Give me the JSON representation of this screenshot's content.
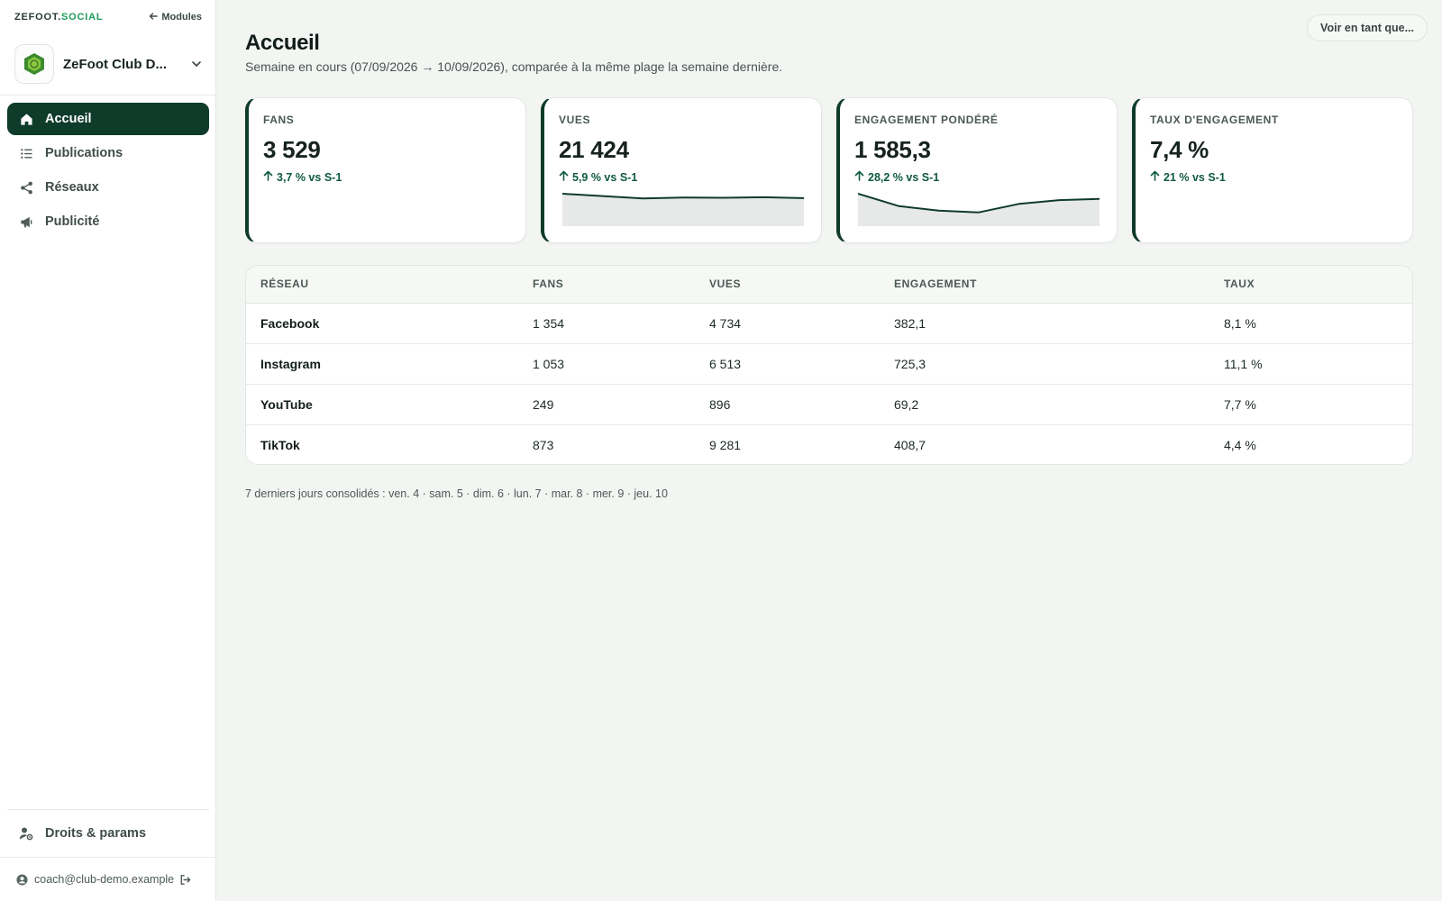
{
  "app": {
    "brand_prefix": "ZEFOOT.",
    "brand_suffix": "SOCIAL",
    "modules_link": "Modules",
    "club_name": "ZeFoot Club D..."
  },
  "sidebar": {
    "items": [
      {
        "label": "Accueil",
        "icon": "home-icon",
        "active": true
      },
      {
        "label": "Publications",
        "icon": "list-icon",
        "active": false
      },
      {
        "label": "Réseaux",
        "icon": "share-icon",
        "active": false
      },
      {
        "label": "Publicité",
        "icon": "megaphone-icon",
        "active": false
      }
    ],
    "settings_label": "Droits & params",
    "user_email": "coach@club-demo.example"
  },
  "header": {
    "title": "Accueil",
    "subtitle": "Semaine en cours (07/09/2026 → 10/09/2026), comparée à la même plage la semaine dernière.",
    "view_as_label": "Voir en tant que..."
  },
  "kpis": [
    {
      "label": "FANS",
      "value": "3 529",
      "delta": "3,7 % vs S-1",
      "sparkline": []
    },
    {
      "label": "VUES",
      "value": "21 424",
      "delta": "5,9 % vs S-1",
      "sparkline": [
        100,
        92,
        84,
        87,
        86,
        88,
        85
      ]
    },
    {
      "label": "ENGAGEMENT PONDÉRÉ",
      "value": "1 585,3",
      "delta": "28,2 % vs S-1",
      "sparkline": [
        100,
        58,
        42,
        36,
        65,
        78,
        82
      ]
    },
    {
      "label": "TAUX D'ENGAGEMENT",
      "value": "7,4 %",
      "delta": "21 % vs S-1",
      "sparkline": []
    }
  ],
  "table": {
    "headers": [
      "RÉSEAU",
      "FANS",
      "VUES",
      "ENGAGEMENT",
      "TAUX"
    ],
    "rows": [
      [
        "Facebook",
        "1 354",
        "4 734",
        "382,1",
        "8,1 %"
      ],
      [
        "Instagram",
        "1 053",
        "6 513",
        "725,3",
        "11,1 %"
      ],
      [
        "YouTube",
        "249",
        "896",
        "69,2",
        "7,7 %"
      ],
      [
        "TikTok",
        "873",
        "9 281",
        "408,7",
        "4,4 %"
      ]
    ]
  },
  "footnote": "7 derniers jours consolidés : ven. 4 · sam. 5 · dim. 6 · lun. 7 · mar. 8 · mer. 9 · jeu. 10",
  "colors": {
    "primary": "#0f3b2b",
    "accent": "#1f9a5a",
    "positive": "#0f5a3c",
    "background": "#f3f5f3"
  }
}
